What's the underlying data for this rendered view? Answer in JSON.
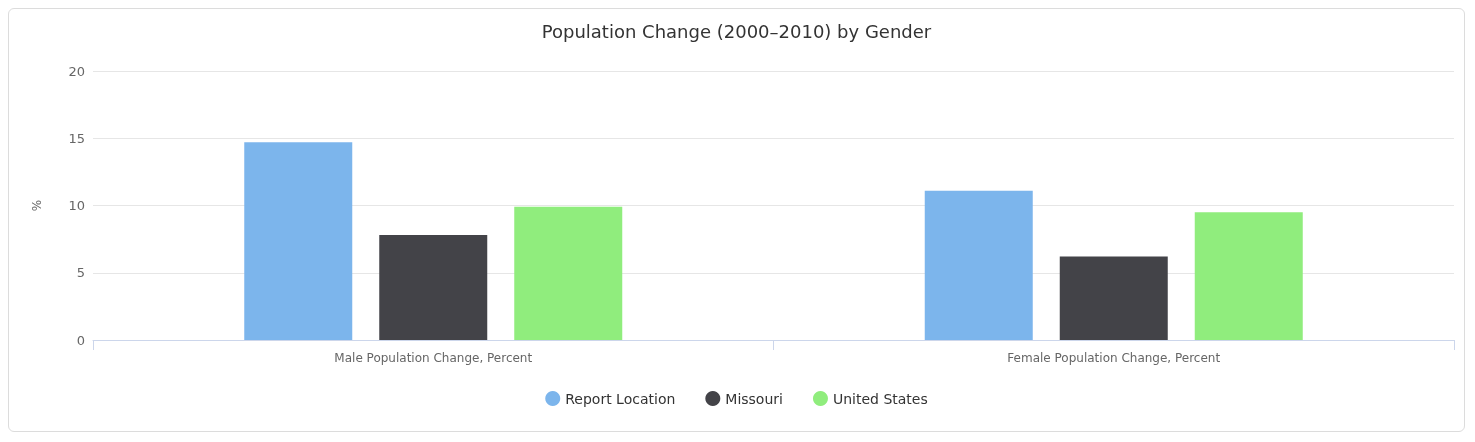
{
  "chart_data": {
    "type": "bar",
    "title": "Population Change (2000–2010) by Gender",
    "ylabel": "%",
    "categories": [
      "Male Population Change, Percent",
      "Female Population Change, Percent"
    ],
    "series": [
      {
        "name": "Report Location",
        "color": "#7cb5ec",
        "values": [
          14.7,
          11.1
        ]
      },
      {
        "name": "Missouri",
        "color": "#434348",
        "values": [
          7.8,
          6.2
        ]
      },
      {
        "name": "United States",
        "color": "#90ed7d",
        "values": [
          9.9,
          9.5
        ]
      }
    ],
    "ylim": [
      0,
      20
    ],
    "yticks": [
      0,
      5,
      10,
      15,
      20
    ],
    "grid": "y",
    "legend": "bottom"
  }
}
